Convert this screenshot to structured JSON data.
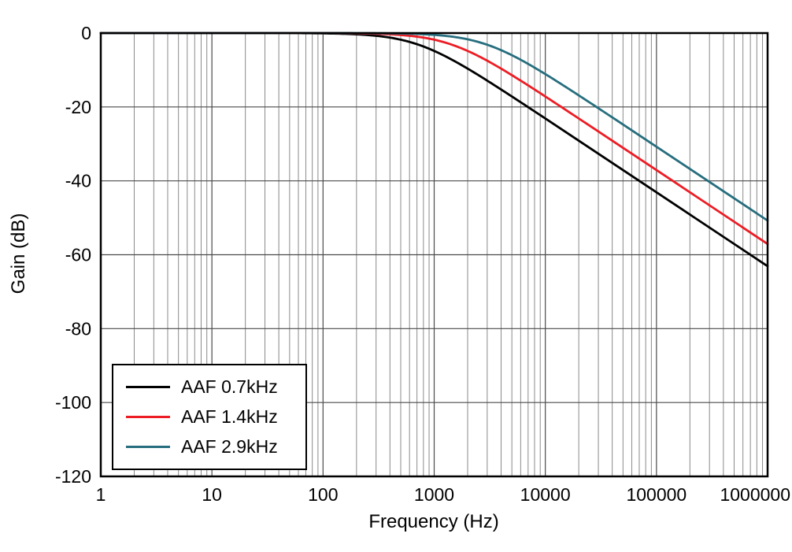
{
  "chart_data": {
    "type": "line",
    "xlabel": "Frequency (Hz)",
    "ylabel": "Gain (dB)",
    "x_scale": "log",
    "xlim": [
      1,
      1000000
    ],
    "ylim": [
      -120,
      0
    ],
    "x_ticks": [
      "1",
      "10",
      "100",
      "1000",
      "10000",
      "100000",
      "1000000"
    ],
    "x_tick_values": [
      1,
      10,
      100,
      1000,
      10000,
      100000,
      1000000
    ],
    "y_ticks": [
      "0",
      "-20",
      "-40",
      "-60",
      "-80",
      "-100",
      "-120"
    ],
    "y_tick_values": [
      0,
      -20,
      -40,
      -60,
      -80,
      -100,
      -120
    ],
    "grid": {
      "vertical_minor_log": true,
      "horizontal_major_only": true
    },
    "legend_position": "lower-left",
    "series": [
      {
        "name": "AAF 0.7kHz",
        "color": "#000000",
        "model": "first-order low-pass",
        "cutoff_hz": 700,
        "points": [
          [
            1,
            0
          ],
          [
            10,
            0
          ],
          [
            100,
            -0.09
          ],
          [
            1000,
            -4.83
          ],
          [
            10000,
            -23.12
          ],
          [
            100000,
            -43.1
          ],
          [
            1000000,
            -63.1
          ]
        ]
      },
      {
        "name": "AAF 1.4kHz",
        "color": "#ed1c24",
        "model": "first-order low-pass",
        "cutoff_hz": 1400,
        "points": [
          [
            1,
            0
          ],
          [
            10,
            0
          ],
          [
            100,
            -0.02
          ],
          [
            1000,
            -1.79
          ],
          [
            10000,
            -17.16
          ],
          [
            100000,
            -37.08
          ],
          [
            1000000,
            -57.08
          ]
        ]
      },
      {
        "name": "AAF 2.9kHz",
        "color": "#266e7e",
        "model": "first-order low-pass",
        "cutoff_hz": 2900,
        "points": [
          [
            1,
            0
          ],
          [
            10,
            0
          ],
          [
            100,
            -0.01
          ],
          [
            1000,
            -0.49
          ],
          [
            10000,
            -11.1
          ],
          [
            100000,
            -30.76
          ],
          [
            1000000,
            -50.75
          ]
        ]
      }
    ]
  }
}
